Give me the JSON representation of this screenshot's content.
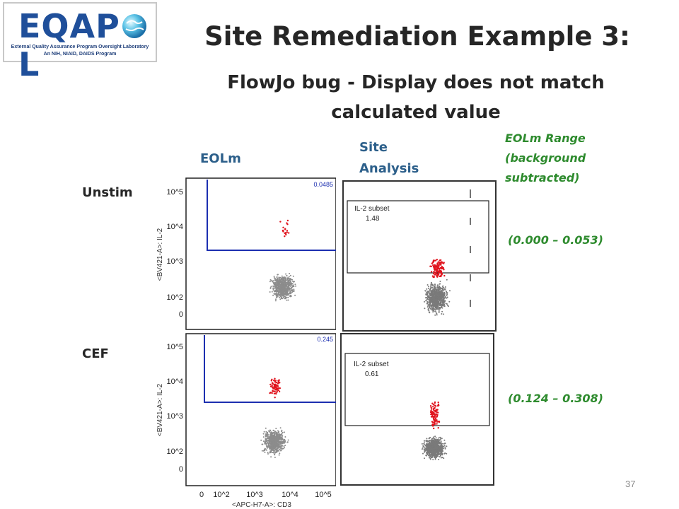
{
  "logo": {
    "text_left": "EQAP",
    "text_right": "L",
    "line1": "External Quality Assurance Program Oversight Laboratory",
    "line2": "An NIH, NIAID, DAIDS Program"
  },
  "title": "Site Remediation Example 3:",
  "subtitle": "FlowJo bug - Display does not match calculated value",
  "headers": {
    "eolm": "EOLm",
    "site_analysis": "Site Analysis",
    "range": "EOLm Range (background subtracted)"
  },
  "rows": [
    {
      "label": "Unstim",
      "eolm_gate_value": "0.0485",
      "site_gate_name": "IL-2 subset",
      "site_gate_value": "1.48",
      "range": "(0.000 – 0.053)"
    },
    {
      "label": "CEF",
      "eolm_gate_value": "0.245",
      "site_gate_name": "IL-2 subset",
      "site_gate_value": "0.61",
      "range": "(0.124 – 0.308)"
    }
  ],
  "axes": {
    "y_label": "<BV421-A>: IL-2",
    "x_label": "<APC-H7-A>: CD3",
    "y_ticks": [
      "10^5",
      "10^4",
      "10^3",
      "10^2",
      "0"
    ],
    "x_ticks": [
      "0",
      "10^2",
      "10^3",
      "10^4",
      "10^5"
    ]
  },
  "page_number": "37",
  "colors": {
    "title": "#262626",
    "green": "#2e8b2e",
    "header_blue": "#2c5f8a",
    "gate_blue": "#1c2fb0",
    "dot_gray": "#8c8c8c",
    "dot_red": "#e0141e",
    "logo_blue": "#1f4f9a"
  }
}
